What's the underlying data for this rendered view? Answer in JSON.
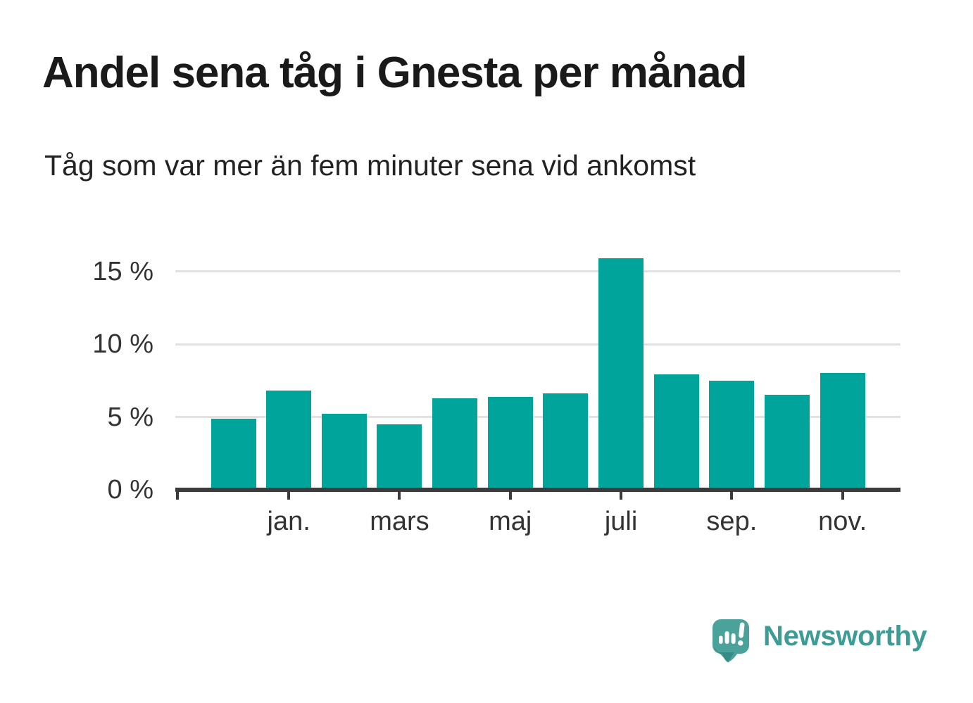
{
  "header": {
    "title": "Andel sena tåg i Gnesta per månad",
    "subtitle": "Tåg som var mer än fem minuter sena vid ankomst"
  },
  "chart_data": {
    "type": "bar",
    "title": "Andel sena tåg i Gnesta per månad",
    "subtitle": "Tåg som var mer än fem minuter sena vid ankomst",
    "unit": "%",
    "bar_count": 12,
    "values": [
      4.9,
      6.8,
      5.2,
      4.5,
      6.3,
      6.4,
      6.6,
      15.9,
      7.9,
      7.5,
      6.5,
      8.0
    ],
    "x_tick_labels": [
      "jan.",
      "mars",
      "maj",
      "juli",
      "sep.",
      "nov."
    ],
    "x_tick_bar_indexes": [
      1,
      3,
      5,
      7,
      9,
      11
    ],
    "y_tick_labels": [
      "0 %",
      "5 %",
      "10 %",
      "15 %"
    ],
    "y_tick_values": [
      0,
      5,
      10,
      15
    ],
    "ylim": [
      0,
      16.7
    ],
    "grid": "horizontal-only",
    "legend": "none",
    "bar_color": "#00a49b"
  },
  "branding": {
    "wordmark": "Newsworthy",
    "logo_icon": "speech-bubble-with-bar-chart-and-exclamation"
  },
  "colors": {
    "bar": "#00a49b",
    "axis": "#3b3b3b",
    "grid": "#e2e2e2",
    "title_text": "#1a1a1a",
    "subtitle_text": "#222222",
    "tick_text": "#333333",
    "logo_bubble": "#4ba29b",
    "logo_shadow": "#2f8680",
    "wordmark": "#3e9c96"
  }
}
